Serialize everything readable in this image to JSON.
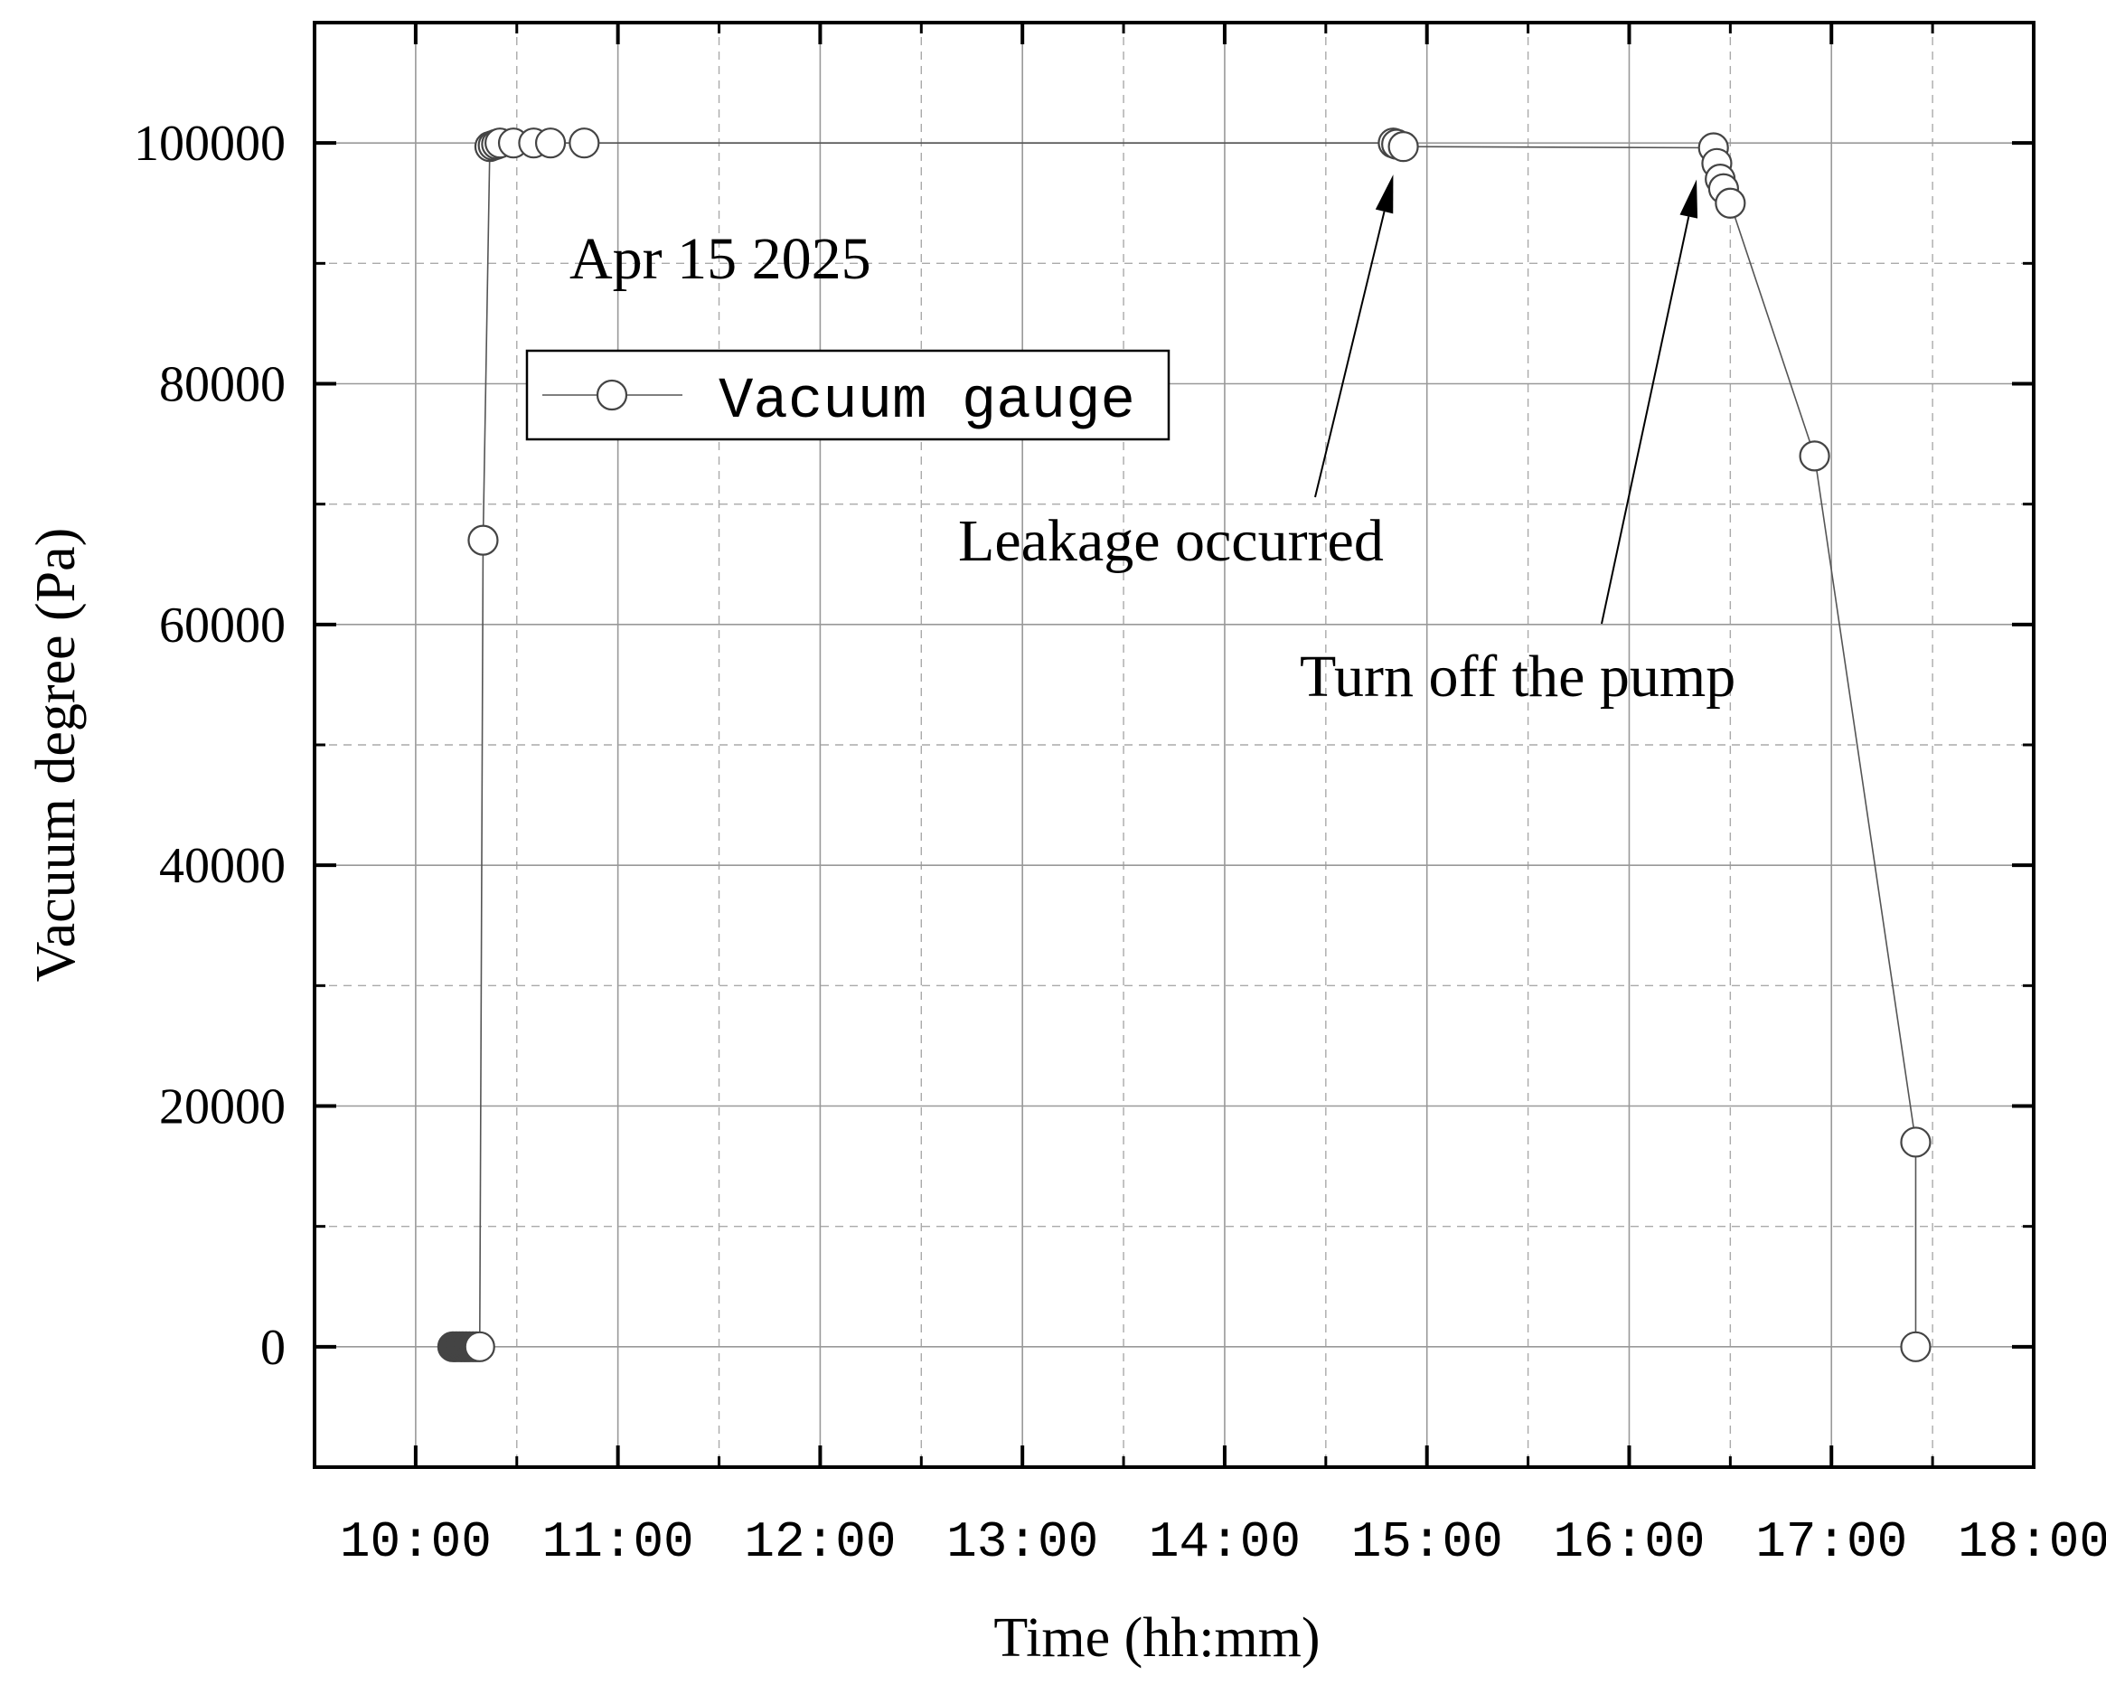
{
  "chart_data": {
    "type": "scatter",
    "title": "",
    "annotation_date": "Apr 15 2025",
    "xlabel": "Time (hh:mm)",
    "ylabel": "Vacuum degree (Pa)",
    "xlim": [
      "09:30",
      "18:00"
    ],
    "ylim": [
      -10000,
      110000
    ],
    "x_ticks": [
      "10:00",
      "11:00",
      "12:00",
      "13:00",
      "14:00",
      "15:00",
      "16:00",
      "17:00",
      "18:00"
    ],
    "y_ticks": [
      0,
      20000,
      40000,
      60000,
      80000,
      100000
    ],
    "y_ticks_labels": [
      "0",
      "20000",
      "40000",
      "60000",
      "80000",
      "100000"
    ],
    "grid": true,
    "legend_position": "upper-left",
    "series": [
      {
        "name": "Vacuum gauge",
        "color": "#555555",
        "marker": "open-circle",
        "points": [
          {
            "x": "10:11",
            "y": 0,
            "filled": true
          },
          {
            "x": "10:12",
            "y": 0,
            "filled": true
          },
          {
            "x": "10:13",
            "y": 0,
            "filled": true
          },
          {
            "x": "10:14",
            "y": 0,
            "filled": true
          },
          {
            "x": "10:15",
            "y": 0,
            "filled": true
          },
          {
            "x": "10:16",
            "y": 0,
            "filled": true
          },
          {
            "x": "10:17",
            "y": 0,
            "filled": true
          },
          {
            "x": "10:18",
            "y": 0,
            "filled": true
          },
          {
            "x": "10:19",
            "y": 0,
            "filled": false
          },
          {
            "x": "10:20",
            "y": 67000,
            "filled": false
          },
          {
            "x": "10:22",
            "y": 99700,
            "filled": false
          },
          {
            "x": "10:23",
            "y": 99800,
            "filled": false
          },
          {
            "x": "10:24",
            "y": 99900,
            "filled": false
          },
          {
            "x": "10:25",
            "y": 100000,
            "filled": false
          },
          {
            "x": "10:29",
            "y": 100000,
            "filled": false
          },
          {
            "x": "10:35",
            "y": 100000,
            "filled": false
          },
          {
            "x": "10:40",
            "y": 100000,
            "filled": false
          },
          {
            "x": "10:50",
            "y": 100000,
            "filled": false
          },
          {
            "x": "14:50",
            "y": 100000,
            "filled": false
          },
          {
            "x": "14:51",
            "y": 99900,
            "filled": false
          },
          {
            "x": "14:53",
            "y": 99700,
            "filled": false
          },
          {
            "x": "16:25",
            "y": 99600,
            "filled": false
          },
          {
            "x": "16:26",
            "y": 98300,
            "filled": false
          },
          {
            "x": "16:27",
            "y": 97000,
            "filled": false
          },
          {
            "x": "16:28",
            "y": 96200,
            "filled": false
          },
          {
            "x": "16:30",
            "y": 95000,
            "filled": false
          },
          {
            "x": "16:55",
            "y": 74000,
            "filled": false
          },
          {
            "x": "17:25",
            "y": 17000,
            "filled": false
          },
          {
            "x": "17:25",
            "y": 0,
            "filled": false
          }
        ]
      }
    ],
    "annotations": [
      {
        "text": "Leakage occurred",
        "x": "14:50",
        "y": 100000
      },
      {
        "text": "Turn off the pump",
        "x": "16:20",
        "y": 99600
      }
    ]
  }
}
